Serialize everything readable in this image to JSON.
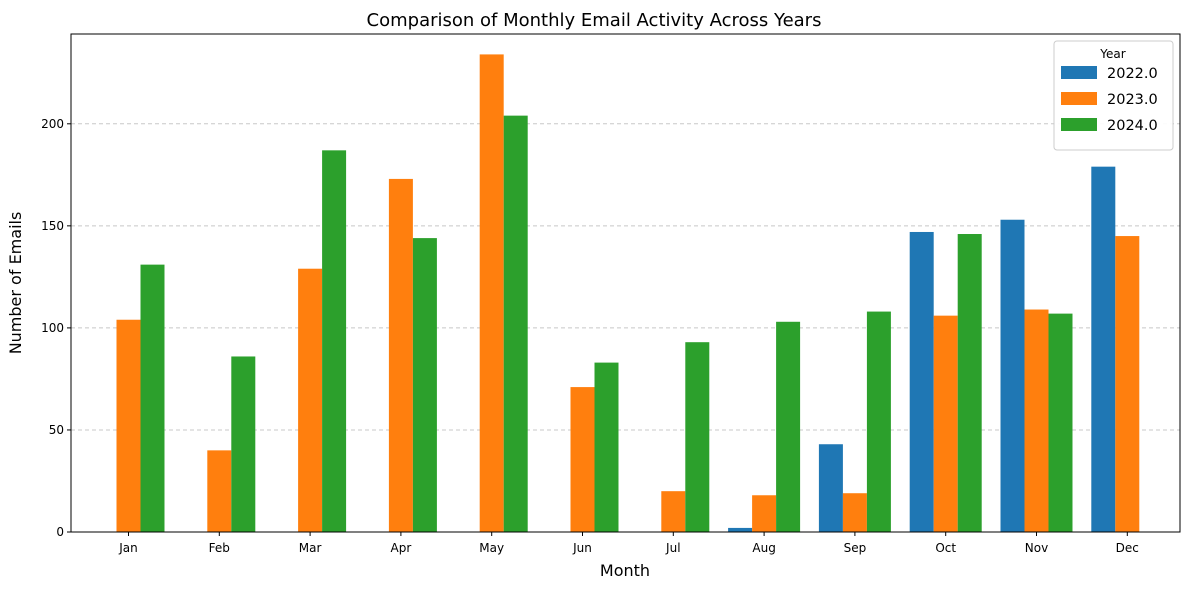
{
  "chart_data": {
    "type": "bar",
    "title": "Comparison of Monthly Email Activity Across Years",
    "xlabel": "Month",
    "ylabel": "Number of Emails",
    "categories": [
      "Jan",
      "Feb",
      "Mar",
      "Apr",
      "May",
      "Jun",
      "Jul",
      "Aug",
      "Sep",
      "Oct",
      "Nov",
      "Dec"
    ],
    "series": [
      {
        "name": "2022.0",
        "color": "#1f77b4",
        "values": [
          0,
          0,
          0,
          0,
          0,
          0,
          0,
          2,
          43,
          147,
          153,
          179
        ]
      },
      {
        "name": "2023.0",
        "color": "#ff7f0e",
        "values": [
          104,
          40,
          129,
          173,
          234,
          71,
          20,
          18,
          19,
          106,
          109,
          145
        ]
      },
      {
        "name": "2024.0",
        "color": "#2ca02c",
        "values": [
          131,
          86,
          187,
          144,
          204,
          83,
          93,
          103,
          108,
          146,
          107,
          0
        ]
      }
    ],
    "ylim": [
      0,
      244
    ],
    "yticks": [
      0,
      50,
      100,
      150,
      200
    ],
    "grid": "y-dashed",
    "legend": {
      "title": "Year",
      "position": "top-right"
    }
  }
}
